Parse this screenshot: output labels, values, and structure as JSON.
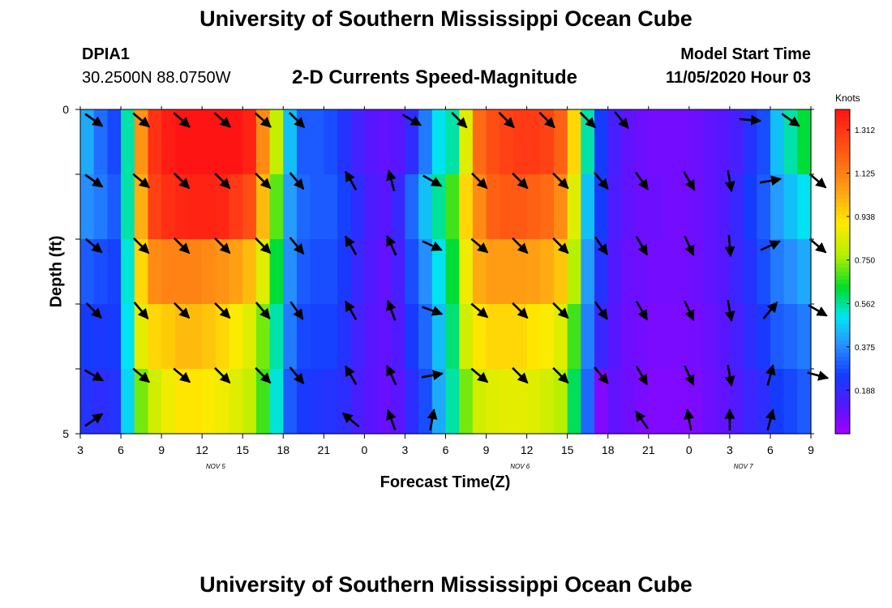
{
  "header": {
    "title": "University of Southern Mississippi Ocean Cube",
    "station": "DPIA1",
    "coords": "30.2500N 88.0750W",
    "subtitle": "2-D Currents Speed-Magnitude",
    "model_start_label": "Model Start Time",
    "model_start_value": "11/05/2020 Hour 03"
  },
  "footer": {
    "title": "University of Southern Mississippi Ocean Cube"
  },
  "chart_data": {
    "type": "heatmap",
    "title": "2-D Currents Speed-Magnitude",
    "xlabel": "Forecast Time(Z)",
    "ylabel": "Depth (ft)",
    "x_hours_range": [
      0,
      54
    ],
    "y_range": [
      0,
      5
    ],
    "y_ticks": [
      0,
      5
    ],
    "x_tick_labels": [
      "3",
      "6",
      "9",
      "12",
      "15",
      "18",
      "21",
      "0",
      "3",
      "6",
      "9",
      "12",
      "15",
      "18",
      "21",
      "0",
      "3",
      "6",
      "9"
    ],
    "date_labels": [
      {
        "label": "NOV 5",
        "hour": 10
      },
      {
        "label": "NOV 6",
        "hour": 32.5
      },
      {
        "label": "NOV 7",
        "hour": 49
      }
    ],
    "colorbar": {
      "units": "Knots",
      "min": 0,
      "max": 1.4,
      "tick_labels": [
        "0.188",
        "0.375",
        "0.562",
        "0.750",
        "0.938",
        "1.125",
        "1.312"
      ],
      "tick_values": [
        0.188,
        0.375,
        0.562,
        0.75,
        0.938,
        1.125,
        1.312
      ]
    },
    "depth_layers": 5,
    "columns_hour_start": 0,
    "columns_hour_step": 1,
    "speed_knots": [
      [
        0.42,
        0.33,
        0.27,
        0.55,
        1.08,
        1.32,
        1.38,
        1.4,
        1.4,
        1.4,
        1.4,
        1.4,
        1.36,
        1.1,
        0.8,
        0.45,
        0.3,
        0.3,
        0.28,
        0.22,
        0.16,
        0.12,
        0.1,
        0.12,
        0.2,
        0.35,
        0.5,
        0.55,
        0.85,
        1.18,
        1.25,
        1.28,
        1.3,
        1.3,
        1.28,
        1.2,
        0.95,
        0.55,
        0.25,
        0.15,
        0.1,
        0.08,
        0.07,
        0.07,
        0.07,
        0.08,
        0.1,
        0.12,
        0.15,
        0.22,
        0.28,
        0.45,
        0.55,
        0.62
      ],
      [
        0.38,
        0.35,
        0.3,
        0.55,
        1.02,
        1.28,
        1.33,
        1.35,
        1.36,
        1.36,
        1.35,
        1.3,
        1.25,
        1.0,
        0.7,
        0.4,
        0.32,
        0.3,
        0.3,
        0.26,
        0.2,
        0.14,
        0.12,
        0.18,
        0.32,
        0.45,
        0.56,
        0.68,
        0.95,
        1.1,
        1.2,
        1.22,
        1.22,
        1.2,
        1.18,
        1.1,
        0.85,
        0.45,
        0.25,
        0.14,
        0.1,
        0.08,
        0.08,
        0.07,
        0.07,
        0.08,
        0.1,
        0.13,
        0.18,
        0.25,
        0.3,
        0.4,
        0.45,
        0.5
      ],
      [
        0.3,
        0.28,
        0.26,
        0.52,
        0.95,
        1.1,
        1.12,
        1.12,
        1.12,
        1.1,
        1.08,
        1.05,
        1.0,
        0.85,
        0.62,
        0.38,
        0.3,
        0.28,
        0.28,
        0.24,
        0.18,
        0.13,
        0.1,
        0.15,
        0.28,
        0.38,
        0.5,
        0.62,
        0.88,
        1.03,
        1.06,
        1.06,
        1.06,
        1.05,
        1.03,
        0.98,
        0.78,
        0.4,
        0.22,
        0.13,
        0.09,
        0.08,
        0.07,
        0.07,
        0.07,
        0.08,
        0.1,
        0.12,
        0.17,
        0.22,
        0.28,
        0.35,
        0.38,
        0.42
      ],
      [
        0.25,
        0.24,
        0.25,
        0.5,
        0.86,
        0.95,
        0.97,
        1.0,
        1.0,
        0.98,
        0.95,
        0.9,
        0.85,
        0.72,
        0.55,
        0.35,
        0.27,
        0.26,
        0.26,
        0.22,
        0.16,
        0.12,
        0.1,
        0.13,
        0.24,
        0.32,
        0.45,
        0.58,
        0.82,
        0.92,
        0.95,
        0.95,
        0.95,
        0.92,
        0.9,
        0.85,
        0.68,
        0.36,
        0.18,
        0.12,
        0.08,
        0.07,
        0.06,
        0.06,
        0.06,
        0.07,
        0.09,
        0.11,
        0.15,
        0.2,
        0.24,
        0.3,
        0.32,
        0.35
      ],
      [
        0.22,
        0.2,
        0.22,
        0.48,
        0.72,
        0.82,
        0.88,
        0.92,
        0.92,
        0.9,
        0.88,
        0.85,
        0.8,
        0.68,
        0.52,
        0.3,
        0.24,
        0.23,
        0.22,
        0.2,
        0.15,
        0.11,
        0.09,
        0.11,
        0.2,
        0.28,
        0.42,
        0.55,
        0.72,
        0.82,
        0.85,
        0.86,
        0.86,
        0.85,
        0.82,
        0.78,
        0.6,
        0.32,
        0.05,
        0.1,
        0.08,
        0.06,
        0.05,
        0.05,
        0.05,
        0.06,
        0.08,
        0.1,
        0.13,
        0.17,
        0.2,
        0.25,
        0.27,
        0.3
      ]
    ],
    "arrow_rows": [
      [
        {
          "h": 1,
          "a": -35
        },
        {
          "h": 4.5,
          "a": -40
        },
        {
          "h": 7.5,
          "a": -42
        },
        {
          "h": 10.5,
          "a": -42
        },
        {
          "h": 13.5,
          "a": -42
        },
        {
          "h": 16,
          "a": -45
        },
        {
          "h": 24.5,
          "a": -30
        },
        {
          "h": 28,
          "a": -45
        },
        {
          "h": 31.5,
          "a": -45
        },
        {
          "h": 34.5,
          "a": -45
        },
        {
          "h": 37.5,
          "a": -45
        },
        {
          "h": 40,
          "a": -50
        },
        {
          "h": 49.5,
          "a": -5
        },
        {
          "h": 52.5,
          "a": -35
        }
      ],
      [
        {
          "h": 1,
          "a": -35
        },
        {
          "h": 4.5,
          "a": -40
        },
        {
          "h": 7.5,
          "a": -45
        },
        {
          "h": 10.5,
          "a": -45
        },
        {
          "h": 13.5,
          "a": -45
        },
        {
          "h": 16,
          "a": -50
        },
        {
          "h": 20,
          "a": 120
        },
        {
          "h": 23,
          "a": 105
        },
        {
          "h": 26,
          "a": -30
        },
        {
          "h": 29.5,
          "a": -45
        },
        {
          "h": 32.5,
          "a": -45
        },
        {
          "h": 35.5,
          "a": -45
        },
        {
          "h": 38.5,
          "a": -50
        },
        {
          "h": 41.5,
          "a": -55
        },
        {
          "h": 45,
          "a": -60
        },
        {
          "h": 48,
          "a": -80
        },
        {
          "h": 51,
          "a": 10
        },
        {
          "h": 54.5,
          "a": -40
        }
      ],
      [
        {
          "h": 1,
          "a": -40
        },
        {
          "h": 4.5,
          "a": -45
        },
        {
          "h": 7.5,
          "a": -45
        },
        {
          "h": 10.5,
          "a": -45
        },
        {
          "h": 13.5,
          "a": -45
        },
        {
          "h": 16,
          "a": -50
        },
        {
          "h": 20,
          "a": 120
        },
        {
          "h": 23,
          "a": 115
        },
        {
          "h": 26,
          "a": -25
        },
        {
          "h": 29.5,
          "a": -40
        },
        {
          "h": 32.5,
          "a": -45
        },
        {
          "h": 35.5,
          "a": -45
        },
        {
          "h": 38.5,
          "a": -55
        },
        {
          "h": 41.5,
          "a": -60
        },
        {
          "h": 45,
          "a": -65
        },
        {
          "h": 48,
          "a": -85
        },
        {
          "h": 51,
          "a": 25
        },
        {
          "h": 54.5,
          "a": -40
        }
      ],
      [
        {
          "h": 1,
          "a": -45
        },
        {
          "h": 4.5,
          "a": -50
        },
        {
          "h": 7.5,
          "a": -45
        },
        {
          "h": 10.5,
          "a": -45
        },
        {
          "h": 13.5,
          "a": -50
        },
        {
          "h": 16,
          "a": -55
        },
        {
          "h": 20,
          "a": 120
        },
        {
          "h": 23,
          "a": 110
        },
        {
          "h": 26,
          "a": -20
        },
        {
          "h": 29.5,
          "a": -40
        },
        {
          "h": 32.5,
          "a": -45
        },
        {
          "h": 35.5,
          "a": -45
        },
        {
          "h": 38.5,
          "a": -55
        },
        {
          "h": 41.5,
          "a": -60
        },
        {
          "h": 45,
          "a": -65
        },
        {
          "h": 48,
          "a": -80
        },
        {
          "h": 51,
          "a": 50
        },
        {
          "h": 54.5,
          "a": -30
        }
      ],
      [
        {
          "h": 1,
          "a": -30
        },
        {
          "h": 4.5,
          "a": -40
        },
        {
          "h": 7.5,
          "a": -40
        },
        {
          "h": 10.5,
          "a": -45
        },
        {
          "h": 13.5,
          "a": -45
        },
        {
          "h": 16,
          "a": -50
        },
        {
          "h": 20,
          "a": 120
        },
        {
          "h": 23,
          "a": 115
        },
        {
          "h": 26,
          "a": 10
        },
        {
          "h": 29.5,
          "a": -40
        },
        {
          "h": 32.5,
          "a": -45
        },
        {
          "h": 35.5,
          "a": -45
        },
        {
          "h": 38.5,
          "a": -50
        },
        {
          "h": 41.5,
          "a": -60
        },
        {
          "h": 45,
          "a": -65
        },
        {
          "h": 48,
          "a": -80
        },
        {
          "h": 51,
          "a": 75
        },
        {
          "h": 54.5,
          "a": -15
        }
      ],
      [
        {
          "h": 1,
          "a": 35
        },
        {
          "h": 20,
          "a": 140
        },
        {
          "h": 23,
          "a": 110
        },
        {
          "h": 26,
          "a": 80
        },
        {
          "h": 41.5,
          "a": 125
        },
        {
          "h": 45,
          "a": 100
        },
        {
          "h": 48,
          "a": 90
        },
        {
          "h": 51,
          "a": 75
        }
      ]
    ]
  }
}
